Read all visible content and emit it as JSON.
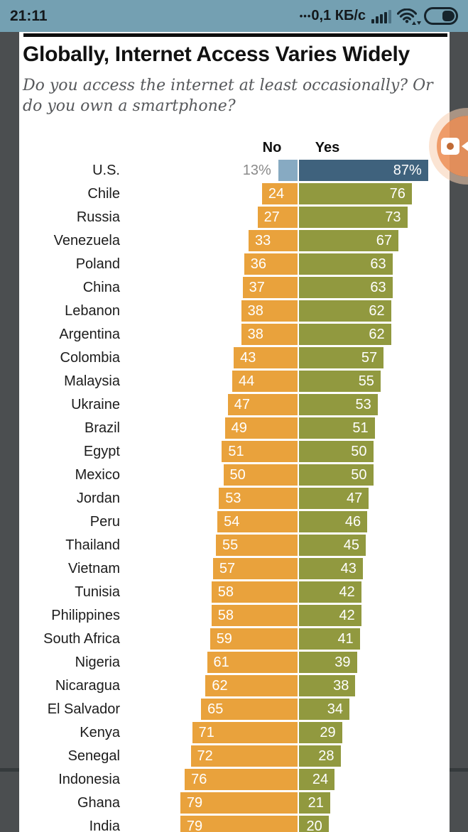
{
  "status_bar": {
    "time": "21:11",
    "traffic_prefix": "•••",
    "traffic": "0,1 КБ/с",
    "icons": {
      "signal": "signal-strength-icon",
      "wifi": "wifi-icon",
      "battery": "battery-icon"
    }
  },
  "overlay": {
    "screen_recorder_icon": "video-camera-icon"
  },
  "chart_data": {
    "type": "bar",
    "variant": "paired-horizontal-diverging",
    "title": "Globally, Internet Access Varies Widely",
    "subtitle": "Do you access the internet at least occasionally? Or do you own a smartphone?",
    "legend": [
      "No",
      "Yes"
    ],
    "unit": "%",
    "axis_max": 100,
    "grid": false,
    "colors": {
      "no": "#E9A23C",
      "yes": "#91993F",
      "no_highlight": "#87AAC2",
      "yes_highlight": "#3F627D",
      "outside_label": "#8A8A8A"
    },
    "rows": [
      {
        "country": "U.S.",
        "no": 13,
        "yes": 87,
        "no_label": "13%",
        "yes_label": "87%",
        "highlight": true
      },
      {
        "country": "Chile",
        "no": 24,
        "yes": 76,
        "no_label": "24",
        "yes_label": "76"
      },
      {
        "country": "Russia",
        "no": 27,
        "yes": 73,
        "no_label": "27",
        "yes_label": "73"
      },
      {
        "country": "Venezuela",
        "no": 33,
        "yes": 67,
        "no_label": "33",
        "yes_label": "67"
      },
      {
        "country": "Poland",
        "no": 36,
        "yes": 63,
        "no_label": "36",
        "yes_label": "63"
      },
      {
        "country": "China",
        "no": 37,
        "yes": 63,
        "no_label": "37",
        "yes_label": "63"
      },
      {
        "country": "Lebanon",
        "no": 38,
        "yes": 62,
        "no_label": "38",
        "yes_label": "62"
      },
      {
        "country": "Argentina",
        "no": 38,
        "yes": 62,
        "no_label": "38",
        "yes_label": "62"
      },
      {
        "country": "Colombia",
        "no": 43,
        "yes": 57,
        "no_label": "43",
        "yes_label": "57"
      },
      {
        "country": "Malaysia",
        "no": 44,
        "yes": 55,
        "no_label": "44",
        "yes_label": "55"
      },
      {
        "country": "Ukraine",
        "no": 47,
        "yes": 53,
        "no_label": "47",
        "yes_label": "53"
      },
      {
        "country": "Brazil",
        "no": 49,
        "yes": 51,
        "no_label": "49",
        "yes_label": "51"
      },
      {
        "country": "Egypt",
        "no": 51,
        "yes": 50,
        "no_label": "51",
        "yes_label": "50"
      },
      {
        "country": "Mexico",
        "no": 50,
        "yes": 50,
        "no_label": "50",
        "yes_label": "50"
      },
      {
        "country": "Jordan",
        "no": 53,
        "yes": 47,
        "no_label": "53",
        "yes_label": "47"
      },
      {
        "country": "Peru",
        "no": 54,
        "yes": 46,
        "no_label": "54",
        "yes_label": "46"
      },
      {
        "country": "Thailand",
        "no": 55,
        "yes": 45,
        "no_label": "55",
        "yes_label": "45"
      },
      {
        "country": "Vietnam",
        "no": 57,
        "yes": 43,
        "no_label": "57",
        "yes_label": "43"
      },
      {
        "country": "Tunisia",
        "no": 58,
        "yes": 42,
        "no_label": "58",
        "yes_label": "42"
      },
      {
        "country": "Philippines",
        "no": 58,
        "yes": 42,
        "no_label": "58",
        "yes_label": "42"
      },
      {
        "country": "South Africa",
        "no": 59,
        "yes": 41,
        "no_label": "59",
        "yes_label": "41"
      },
      {
        "country": "Nigeria",
        "no": 61,
        "yes": 39,
        "no_label": "61",
        "yes_label": "39"
      },
      {
        "country": "Nicaragua",
        "no": 62,
        "yes": 38,
        "no_label": "62",
        "yes_label": "38"
      },
      {
        "country": "El Salvador",
        "no": 65,
        "yes": 34,
        "no_label": "65",
        "yes_label": "34"
      },
      {
        "country": "Kenya",
        "no": 71,
        "yes": 29,
        "no_label": "71",
        "yes_label": "29"
      },
      {
        "country": "Senegal",
        "no": 72,
        "yes": 28,
        "no_label": "72",
        "yes_label": "28"
      },
      {
        "country": "Indonesia",
        "no": 76,
        "yes": 24,
        "no_label": "76",
        "yes_label": "24"
      },
      {
        "country": "Ghana",
        "no": 79,
        "yes": 21,
        "no_label": "79",
        "yes_label": "21"
      },
      {
        "country": "India",
        "no": 79,
        "yes": 20,
        "no_label": "79",
        "yes_label": "20"
      }
    ]
  }
}
